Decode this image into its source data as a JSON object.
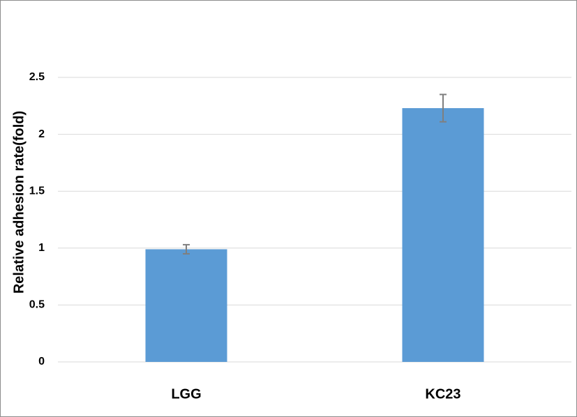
{
  "chart_data": {
    "type": "bar",
    "y_label": "Relative adhesion rate(fold)",
    "categories": [
      "LGG",
      "KC23"
    ],
    "values": [
      0.99,
      2.23
    ],
    "errors": [
      0.04,
      0.12
    ],
    "color": "#5b9bd5",
    "error_color": "#7f7f7f",
    "ylim": [
      0,
      2.5
    ],
    "yticks": [
      0,
      0.5,
      1,
      1.5,
      2,
      2.5
    ],
    "grid": true
  }
}
